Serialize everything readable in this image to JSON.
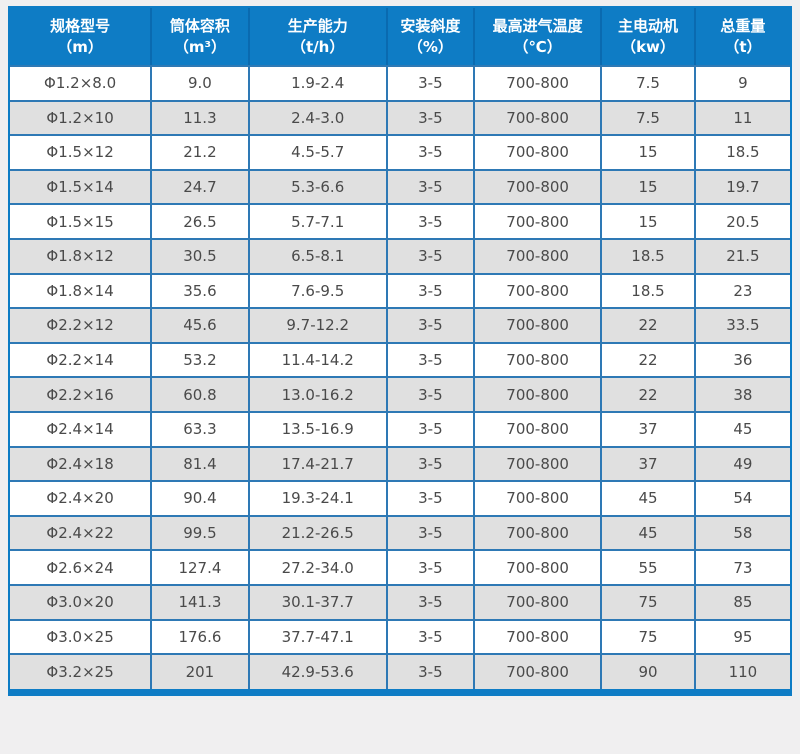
{
  "page": {
    "background": "#f0eff0"
  },
  "colors": {
    "header_bg": "#0e7cc5",
    "header_separator": "#0a6ab0",
    "header_text": "#ffffff",
    "grid_border": "#2e79b5",
    "frame_border": "#0e7cc5",
    "row_even_bg": "#e0e0e0",
    "row_odd_bg": "#ffffff",
    "body_text": "#4a4a4a"
  },
  "table": {
    "columns": [
      {
        "label": "规格型号",
        "unit": "（m）"
      },
      {
        "label": "筒体容积",
        "unit": "（m³）"
      },
      {
        "label": "生产能力",
        "unit": "（t/h）"
      },
      {
        "label": "安装斜度",
        "unit": "（%）"
      },
      {
        "label": "最高进气温度",
        "unit": "（℃）"
      },
      {
        "label": "主电动机",
        "unit": "（kw）"
      },
      {
        "label": "总重量",
        "unit": "（t）"
      }
    ],
    "rows": [
      [
        "Φ1.2×8.0",
        "9.0",
        "1.9-2.4",
        "3-5",
        "700-800",
        "7.5",
        "9"
      ],
      [
        "Φ1.2×10",
        "11.3",
        "2.4-3.0",
        "3-5",
        "700-800",
        "7.5",
        "11"
      ],
      [
        "Φ1.5×12",
        "21.2",
        "4.5-5.7",
        "3-5",
        "700-800",
        "15",
        "18.5"
      ],
      [
        "Φ1.5×14",
        "24.7",
        "5.3-6.6",
        "3-5",
        "700-800",
        "15",
        "19.7"
      ],
      [
        "Φ1.5×15",
        "26.5",
        "5.7-7.1",
        "3-5",
        "700-800",
        "15",
        "20.5"
      ],
      [
        "Φ1.8×12",
        "30.5",
        "6.5-8.1",
        "3-5",
        "700-800",
        "18.5",
        "21.5"
      ],
      [
        "Φ1.8×14",
        "35.6",
        "7.6-9.5",
        "3-5",
        "700-800",
        "18.5",
        "23"
      ],
      [
        "Φ2.2×12",
        "45.6",
        "9.7-12.2",
        "3-5",
        "700-800",
        "22",
        "33.5"
      ],
      [
        "Φ2.2×14",
        "53.2",
        "11.4-14.2",
        "3-5",
        "700-800",
        "22",
        "36"
      ],
      [
        "Φ2.2×16",
        "60.8",
        "13.0-16.2",
        "3-5",
        "700-800",
        "22",
        "38"
      ],
      [
        "Φ2.4×14",
        "63.3",
        "13.5-16.9",
        "3-5",
        "700-800",
        "37",
        "45"
      ],
      [
        "Φ2.4×18",
        "81.4",
        "17.4-21.7",
        "3-5",
        "700-800",
        "37",
        "49"
      ],
      [
        "Φ2.4×20",
        "90.4",
        "19.3-24.1",
        "3-5",
        "700-800",
        "45",
        "54"
      ],
      [
        "Φ2.4×22",
        "99.5",
        "21.2-26.5",
        "3-5",
        "700-800",
        "45",
        "58"
      ],
      [
        "Φ2.6×24",
        "127.4",
        "27.2-34.0",
        "3-5",
        "700-800",
        "55",
        "73"
      ],
      [
        "Φ3.0×20",
        "141.3",
        "30.1-37.7",
        "3-5",
        "700-800",
        "75",
        "85"
      ],
      [
        "Φ3.0×25",
        "176.6",
        "37.7-47.1",
        "3-5",
        "700-800",
        "75",
        "95"
      ],
      [
        "Φ3.2×25",
        "201",
        "42.9-53.6",
        "3-5",
        "700-800",
        "90",
        "110"
      ]
    ]
  }
}
